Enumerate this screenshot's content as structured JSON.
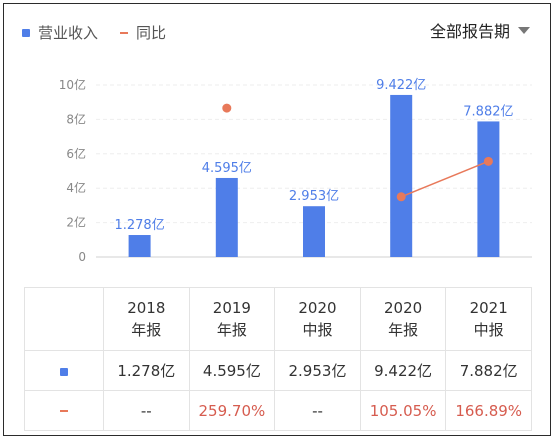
{
  "legend": {
    "bar_label": "营业收入",
    "line_label": "同比",
    "bar_color": "#4f7ee8",
    "line_color": "#e8795a"
  },
  "period_selector": {
    "label": "全部报告期"
  },
  "chart_data": {
    "type": "bar",
    "categories": [
      "2018 年报",
      "2019 年报",
      "2020 中报",
      "2020 年报",
      "2021 中报"
    ],
    "series": [
      {
        "name": "营业收入",
        "values": [
          1.278,
          4.595,
          2.953,
          9.422,
          7.882
        ],
        "labels": [
          "1.278亿",
          "4.595亿",
          "2.953亿",
          "9.422亿",
          "7.882亿"
        ]
      },
      {
        "name": "同比",
        "values": [
          null,
          259.7,
          null,
          105.05,
          166.89
        ]
      }
    ],
    "y_ticks": [
      "0",
      "2亿",
      "4亿",
      "6亿",
      "8亿",
      "10亿"
    ],
    "ylim": [
      0,
      10
    ],
    "y2lim": [
      0,
      300
    ],
    "grid": true
  },
  "table": {
    "headers": [
      {
        "year": "2018",
        "type": "年报"
      },
      {
        "year": "2019",
        "type": "年报"
      },
      {
        "year": "2020",
        "type": "中报"
      },
      {
        "year": "2020",
        "type": "年报"
      },
      {
        "year": "2021",
        "type": "中报"
      }
    ],
    "revenue": [
      "1.278亿",
      "4.595亿",
      "2.953亿",
      "9.422亿",
      "7.882亿"
    ],
    "yoy": [
      "--",
      "259.70%",
      "--",
      "105.05%",
      "166.89%"
    ]
  }
}
